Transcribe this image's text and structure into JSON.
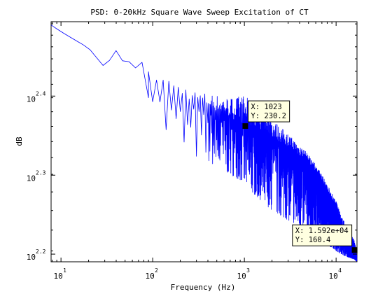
{
  "chart_data": {
    "type": "line",
    "title": "PSD: 0-20kHz Square Wave Sweep Excitation of CT",
    "xlabel": "Frequency (Hz)",
    "ylabel": "dB",
    "xscale": "log",
    "yscale": "log",
    "xlim": [
      7.8,
      16900
    ],
    "ylim": [
      155,
      312
    ],
    "grid": false,
    "line_color": "#0000ff",
    "x_ticks": [
      {
        "base": "10",
        "exp": "1",
        "value": 10
      },
      {
        "base": "10",
        "exp": "2",
        "value": 100
      },
      {
        "base": "10",
        "exp": "3",
        "value": 1000
      },
      {
        "base": "10",
        "exp": "4",
        "value": 10000
      }
    ],
    "y_ticks": [
      {
        "base": "10",
        "exp": "2.2",
        "value": 158.5
      },
      {
        "base": "10",
        "exp": "2.3",
        "value": 199.5
      },
      {
        "base": "10",
        "exp": "2.4",
        "value": 251.2
      }
    ],
    "series": [
      {
        "x": [
          7.8,
          10,
          20,
          30,
          40,
          50,
          60,
          70,
          80,
          90,
          100,
          110,
          130,
          200,
          300,
          500,
          700,
          1023,
          1200,
          2000,
          3000,
          5000,
          7000,
          10000,
          12000,
          15920,
          16900
        ],
        "y": [
          309,
          303,
          289,
          273,
          287,
          275,
          280,
          266,
          283,
          266,
          265,
          262,
          260,
          252,
          246,
          240,
          236,
          230.2,
          230,
          223,
          216,
          206,
          195,
          178,
          167,
          160.4,
          156
        ],
        "min_envelope": [
          309,
          303,
          289,
          273,
          287,
          275,
          280,
          266,
          283,
          250,
          245,
          235,
          225,
          215,
          210,
          205,
          200,
          195,
          190,
          180,
          175,
          170,
          165,
          160,
          158,
          156,
          155
        ],
        "max_envelope": [
          309,
          303,
          289,
          273,
          287,
          275,
          280,
          266,
          283,
          270,
          271,
          268,
          266,
          260,
          255,
          252,
          250,
          252,
          245,
          235,
          225,
          212,
          200,
          185,
          175,
          165,
          158
        ]
      }
    ],
    "datatips": [
      {
        "x_label": "X: 1023",
        "y_label": "Y: 230.2",
        "x": 1023,
        "y": 230.2
      },
      {
        "x_label": "X: 1.592e+04",
        "y_label": "Y: 160.4",
        "x": 15920,
        "y": 160.4
      }
    ]
  }
}
